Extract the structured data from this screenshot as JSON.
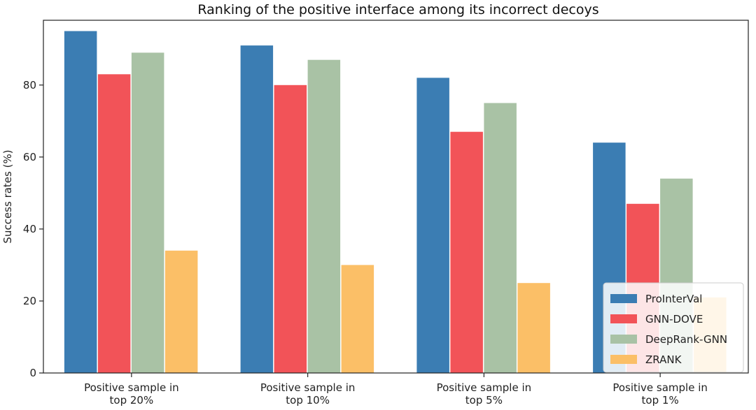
{
  "chart_data": {
    "type": "bar",
    "title": "Ranking of the positive interface among its incorrect decoys",
    "xlabel": "",
    "ylabel": "Success rates (%)",
    "ylim": [
      0,
      98
    ],
    "yticks": [
      0,
      20,
      40,
      60,
      80
    ],
    "grid": false,
    "legend_position": "lower-right",
    "categories": [
      [
        "Positive sample in",
        "top 20%"
      ],
      [
        "Positive sample in",
        "top 10%"
      ],
      [
        "Positive sample in",
        "top 5%"
      ],
      [
        "Positive sample in",
        "top 1%"
      ]
    ],
    "series": [
      {
        "name": "ProInterVal",
        "color": "#3b7db3",
        "values": [
          95,
          91,
          82,
          64
        ]
      },
      {
        "name": "GNN-DOVE",
        "color": "#f25358",
        "values": [
          83,
          80,
          67,
          47
        ]
      },
      {
        "name": "DeepRank-GNN",
        "color": "#a9c2a5",
        "values": [
          89,
          87,
          75,
          54
        ]
      },
      {
        "name": "ZRANK",
        "color": "#fbbf67",
        "values": [
          34,
          30,
          25,
          21
        ]
      }
    ]
  }
}
